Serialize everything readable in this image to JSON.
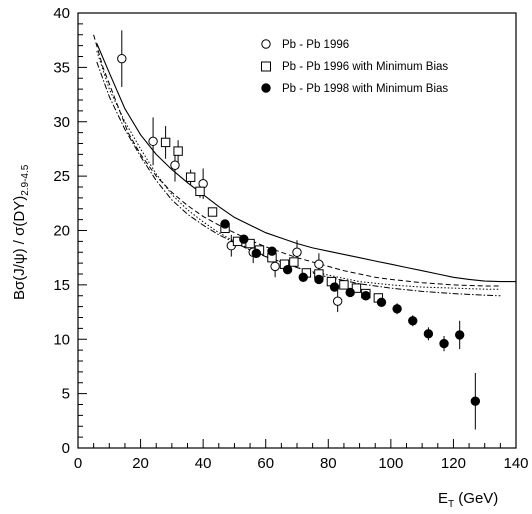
{
  "chart_data": {
    "type": "scatter",
    "xlim": [
      0,
      140
    ],
    "ylim": [
      0,
      40
    ],
    "x_ticks": [
      0,
      20,
      40,
      60,
      80,
      100,
      120,
      140
    ],
    "y_ticks": [
      0,
      5,
      10,
      15,
      20,
      25,
      30,
      35,
      40
    ],
    "x_minor_step": 5,
    "y_minor_step": 1,
    "xlabel_main": "E",
    "xlabel_sub": "T",
    "xlabel_unit": " (GeV)",
    "ylabel_main": "Bσ(J/ψ) / σ(DY)",
    "ylabel_sub": "2.9-4.5",
    "grid": false,
    "legend_position": "top-right",
    "series": [
      {
        "name": "Pb - Pb 1996",
        "marker": "open-circle",
        "points": [
          {
            "x": 14,
            "y": 35.8,
            "err": 2.6
          },
          {
            "x": 24,
            "y": 28.2,
            "err": 2.2
          },
          {
            "x": 31,
            "y": 26.0,
            "err": 1.5
          },
          {
            "x": 40,
            "y": 24.3,
            "err": 1.4
          },
          {
            "x": 49,
            "y": 18.6,
            "err": 1.0
          },
          {
            "x": 56,
            "y": 18.0,
            "err": 1.0
          },
          {
            "x": 63,
            "y": 16.7,
            "err": 1.0
          },
          {
            "x": 70,
            "y": 18.0,
            "err": 1.1
          },
          {
            "x": 77,
            "y": 16.9,
            "err": 1.0
          },
          {
            "x": 83,
            "y": 13.5,
            "err": 1.0
          }
        ]
      },
      {
        "name": "Pb - Pb 1996 with Minimum Bias",
        "marker": "open-square",
        "points": [
          {
            "x": 28,
            "y": 28.1,
            "err": 1.5
          },
          {
            "x": 32,
            "y": 27.3,
            "err": 1.0
          },
          {
            "x": 36,
            "y": 24.9,
            "err": 0.7
          },
          {
            "x": 39,
            "y": 23.6,
            "err": 0.6
          },
          {
            "x": 43,
            "y": 21.7,
            "err": 0.4
          },
          {
            "x": 47,
            "y": 20.2,
            "err": 0.4
          },
          {
            "x": 51,
            "y": 19.0,
            "err": 0.4
          },
          {
            "x": 55,
            "y": 18.8,
            "err": 0.4
          },
          {
            "x": 58,
            "y": 18.2,
            "err": 0.4
          },
          {
            "x": 62,
            "y": 17.5,
            "err": 0.4
          },
          {
            "x": 66,
            "y": 16.9,
            "err": 0.4
          },
          {
            "x": 69,
            "y": 17.1,
            "err": 0.4
          },
          {
            "x": 73,
            "y": 16.1,
            "err": 0.4
          },
          {
            "x": 77,
            "y": 16.0,
            "err": 0.4
          },
          {
            "x": 81,
            "y": 15.3,
            "err": 0.4
          },
          {
            "x": 85,
            "y": 15.0,
            "err": 0.4
          },
          {
            "x": 89,
            "y": 14.7,
            "err": 0.4
          },
          {
            "x": 92,
            "y": 14.2,
            "err": 0.4
          },
          {
            "x": 96,
            "y": 13.8,
            "err": 0.4
          }
        ]
      },
      {
        "name": "Pb - Pb 1998 with Minimum Bias",
        "marker": "filled-circle",
        "points": [
          {
            "x": 47,
            "y": 20.6,
            "err": 0.4
          },
          {
            "x": 53,
            "y": 19.2,
            "err": 0.4
          },
          {
            "x": 57,
            "y": 17.9,
            "err": 0.4
          },
          {
            "x": 62,
            "y": 18.1,
            "err": 0.4
          },
          {
            "x": 67,
            "y": 16.4,
            "err": 0.4
          },
          {
            "x": 72,
            "y": 15.7,
            "err": 0.4
          },
          {
            "x": 77,
            "y": 15.5,
            "err": 0.4
          },
          {
            "x": 82,
            "y": 14.8,
            "err": 0.4
          },
          {
            "x": 87,
            "y": 14.3,
            "err": 0.4
          },
          {
            "x": 92,
            "y": 14.0,
            "err": 0.4
          },
          {
            "x": 97,
            "y": 13.4,
            "err": 0.4
          },
          {
            "x": 102,
            "y": 12.8,
            "err": 0.5
          },
          {
            "x": 107,
            "y": 11.7,
            "err": 0.5
          },
          {
            "x": 112,
            "y": 10.5,
            "err": 0.6
          },
          {
            "x": 117,
            "y": 9.6,
            "err": 0.7
          },
          {
            "x": 122,
            "y": 10.4,
            "err": 1.3
          },
          {
            "x": 127,
            "y": 4.3,
            "err": 2.6
          }
        ]
      }
    ],
    "curves": [
      {
        "style": "solid",
        "points": [
          [
            6,
            37.2
          ],
          [
            10,
            34.5
          ],
          [
            15,
            31.2
          ],
          [
            20,
            28.8
          ],
          [
            25,
            27.0
          ],
          [
            30,
            25.6
          ],
          [
            35,
            24.4
          ],
          [
            40,
            23.3
          ],
          [
            45,
            22.2
          ],
          [
            50,
            21.2
          ],
          [
            55,
            20.5
          ],
          [
            60,
            19.8
          ],
          [
            65,
            19.3
          ],
          [
            70,
            18.8
          ],
          [
            75,
            18.4
          ],
          [
            80,
            18.1
          ],
          [
            85,
            17.8
          ],
          [
            90,
            17.5
          ],
          [
            95,
            17.2
          ],
          [
            100,
            16.9
          ],
          [
            105,
            16.6
          ],
          [
            110,
            16.3
          ],
          [
            115,
            16.0
          ],
          [
            120,
            15.7
          ],
          [
            125,
            15.5
          ],
          [
            130,
            15.35
          ],
          [
            135,
            15.3
          ],
          [
            140,
            15.3
          ]
        ]
      },
      {
        "style": "dashed",
        "points": [
          [
            5,
            38.0
          ],
          [
            8,
            35.0
          ],
          [
            12,
            32.0
          ],
          [
            16,
            29.0
          ],
          [
            20,
            27.0
          ],
          [
            25,
            25.0
          ],
          [
            30,
            23.5
          ],
          [
            35,
            22.3
          ],
          [
            40,
            21.3
          ],
          [
            45,
            20.5
          ],
          [
            50,
            19.8
          ],
          [
            55,
            19.1
          ],
          [
            60,
            18.5
          ],
          [
            65,
            18.0
          ],
          [
            70,
            17.5
          ],
          [
            75,
            17.1
          ],
          [
            80,
            16.7
          ],
          [
            85,
            16.3
          ],
          [
            90,
            16.0
          ],
          [
            95,
            15.7
          ],
          [
            100,
            15.5
          ],
          [
            110,
            15.2
          ],
          [
            120,
            15.0
          ],
          [
            130,
            14.9
          ],
          [
            135,
            14.9
          ]
        ]
      },
      {
        "style": "dotted",
        "points": [
          [
            6,
            36.5
          ],
          [
            10,
            33.0
          ],
          [
            15,
            30.0
          ],
          [
            20,
            27.5
          ],
          [
            25,
            25.2
          ],
          [
            30,
            23.3
          ],
          [
            35,
            21.9
          ],
          [
            40,
            20.8
          ],
          [
            45,
            19.8
          ],
          [
            50,
            19.0
          ],
          [
            55,
            18.3
          ],
          [
            60,
            17.6
          ],
          [
            65,
            17.1
          ],
          [
            70,
            16.6
          ],
          [
            75,
            16.2
          ],
          [
            80,
            15.9
          ],
          [
            85,
            15.6
          ],
          [
            90,
            15.3
          ],
          [
            100,
            15.0
          ],
          [
            110,
            14.8
          ],
          [
            120,
            14.7
          ],
          [
            130,
            14.6
          ],
          [
            135,
            14.6
          ]
        ]
      },
      {
        "style": "dashdot",
        "points": [
          [
            6,
            35.5
          ],
          [
            10,
            32.3
          ],
          [
            15,
            29.3
          ],
          [
            20,
            26.8
          ],
          [
            25,
            24.6
          ],
          [
            30,
            22.8
          ],
          [
            35,
            21.5
          ],
          [
            40,
            20.5
          ],
          [
            45,
            19.6
          ],
          [
            50,
            18.9
          ],
          [
            55,
            18.2
          ],
          [
            60,
            17.6
          ],
          [
            65,
            17.1
          ],
          [
            70,
            16.6
          ],
          [
            75,
            16.1
          ],
          [
            80,
            15.7
          ],
          [
            85,
            15.4
          ],
          [
            90,
            15.1
          ],
          [
            100,
            14.7
          ],
          [
            110,
            14.4
          ],
          [
            120,
            14.2
          ],
          [
            130,
            14.05
          ],
          [
            135,
            14.0
          ]
        ]
      }
    ]
  }
}
